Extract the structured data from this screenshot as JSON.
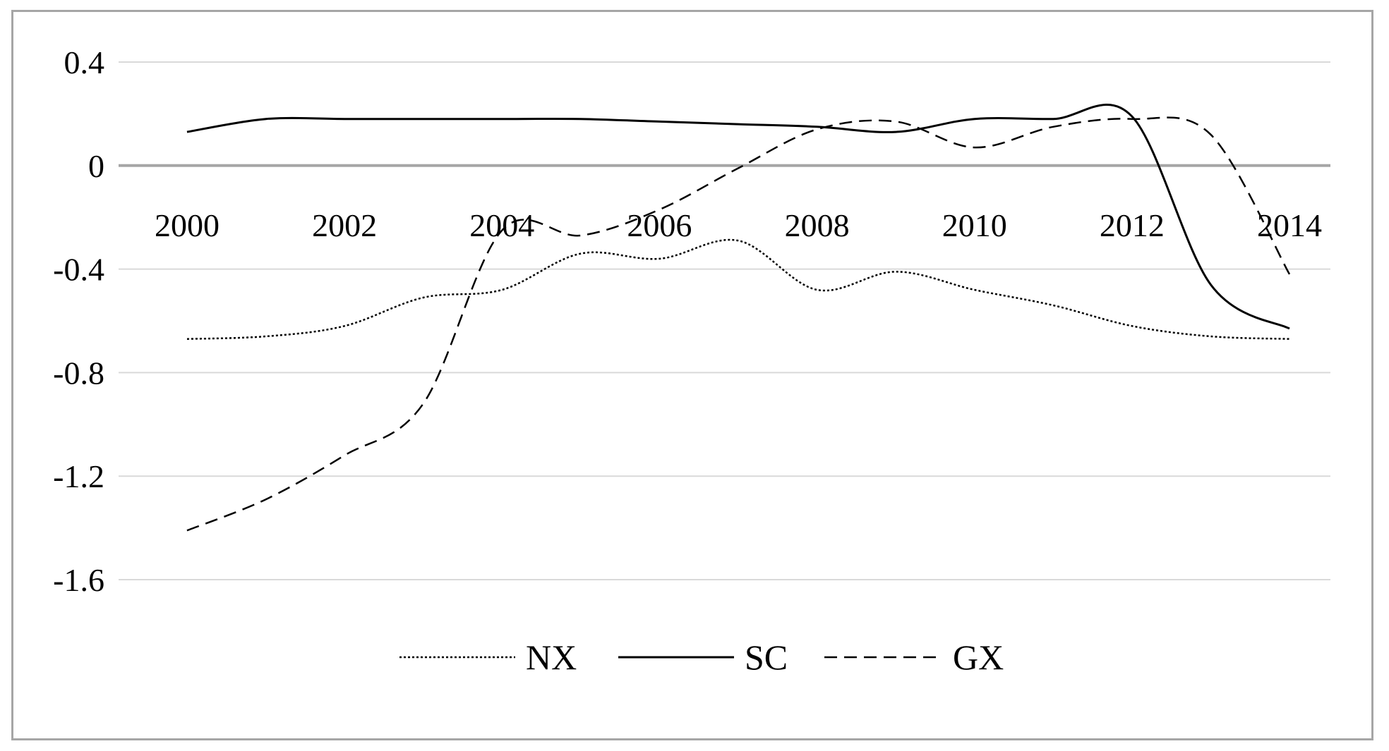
{
  "chart_data": {
    "type": "line",
    "x": [
      2000,
      2001,
      2002,
      2003,
      2004,
      2005,
      2006,
      2007,
      2008,
      2009,
      2010,
      2011,
      2012,
      2013,
      2014
    ],
    "x_ticks": [
      "2000",
      "2002",
      "2004",
      "2006",
      "2008",
      "2010",
      "2012",
      "2014"
    ],
    "y_ticks": [
      "0.4",
      "0",
      "-0.4",
      "-0.8",
      "-1.2",
      "-1.6"
    ],
    "ylim": [
      -1.6,
      0.4
    ],
    "grid": true,
    "legend": "bottom",
    "series": [
      {
        "name": "NX",
        "style": "dotted",
        "values": [
          -0.67,
          -0.66,
          -0.62,
          -0.51,
          -0.48,
          -0.34,
          -0.36,
          -0.29,
          -0.48,
          -0.41,
          -0.48,
          -0.54,
          -0.62,
          -0.66,
          -0.67
        ]
      },
      {
        "name": "SC",
        "style": "solid",
        "values": [
          0.13,
          0.18,
          0.18,
          0.18,
          0.18,
          0.18,
          0.17,
          0.16,
          0.15,
          0.13,
          0.18,
          0.18,
          0.19,
          -0.46,
          -0.63
        ]
      },
      {
        "name": "GX",
        "style": "dashed",
        "values": [
          -1.41,
          -1.29,
          -1.12,
          -0.92,
          -0.25,
          -0.27,
          -0.17,
          -0.01,
          0.14,
          0.17,
          0.07,
          0.15,
          0.18,
          0.12,
          -0.42
        ]
      }
    ]
  }
}
